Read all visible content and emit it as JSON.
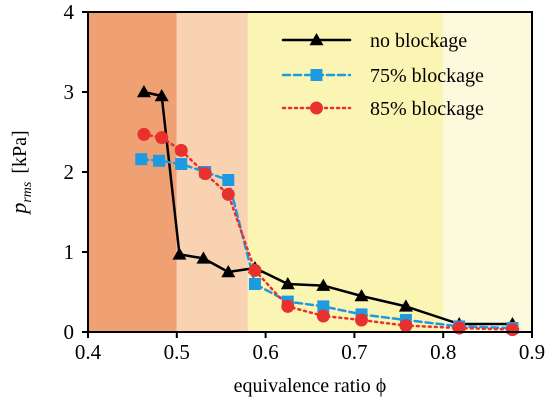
{
  "chart_data": {
    "type": "line",
    "xlabel": "equivalence ratio ϕ",
    "ylabel_main": "p",
    "ylabel_sub": "rms",
    "ylabel_unit": "[kPa]",
    "xlim": [
      0.4,
      0.9
    ],
    "ylim": [
      0,
      4
    ],
    "xticks": [
      "0.4",
      "0.5",
      "0.6",
      "0.7",
      "0.8",
      "0.9"
    ],
    "yticks": [
      "0",
      "1",
      "2",
      "3",
      "4"
    ],
    "grid": false,
    "legend_position": "top-right",
    "bands": [
      {
        "x": [
          0.4,
          0.5
        ],
        "color": "#f0a173"
      },
      {
        "x": [
          0.5,
          0.58
        ],
        "color": "#f9d2b1"
      },
      {
        "x": [
          0.58,
          0.8
        ],
        "color": "#fbf5b3"
      },
      {
        "x": [
          0.8,
          0.9
        ],
        "color": "#fdf9dc"
      }
    ],
    "series": [
      {
        "name": "no blockage",
        "color": "#000000",
        "line_style": "solid",
        "marker": "triangle",
        "x": [
          0.463,
          0.483,
          0.503,
          0.53,
          0.558,
          0.588,
          0.625,
          0.665,
          0.708,
          0.758,
          0.818,
          0.878
        ],
        "y": [
          3.0,
          2.95,
          0.97,
          0.92,
          0.75,
          0.8,
          0.6,
          0.58,
          0.45,
          0.32,
          0.1,
          0.1
        ]
      },
      {
        "name": "75% blockage",
        "color": "#1e9be0",
        "line_style": "dashed",
        "marker": "square",
        "x": [
          0.46,
          0.48,
          0.505,
          0.532,
          0.558,
          0.588,
          0.625,
          0.665,
          0.708,
          0.758,
          0.818,
          0.878
        ],
        "y": [
          2.16,
          2.14,
          2.1,
          2.0,
          1.9,
          0.6,
          0.38,
          0.32,
          0.22,
          0.15,
          0.07,
          0.05
        ]
      },
      {
        "name": "85% blockage",
        "color": "#e8302f",
        "line_style": "dotted",
        "marker": "circle",
        "x": [
          0.463,
          0.483,
          0.505,
          0.532,
          0.558,
          0.588,
          0.625,
          0.665,
          0.708,
          0.758,
          0.818,
          0.878
        ],
        "y": [
          2.47,
          2.43,
          2.27,
          1.98,
          1.72,
          0.77,
          0.32,
          0.2,
          0.15,
          0.08,
          0.05,
          0.03
        ]
      }
    ]
  }
}
